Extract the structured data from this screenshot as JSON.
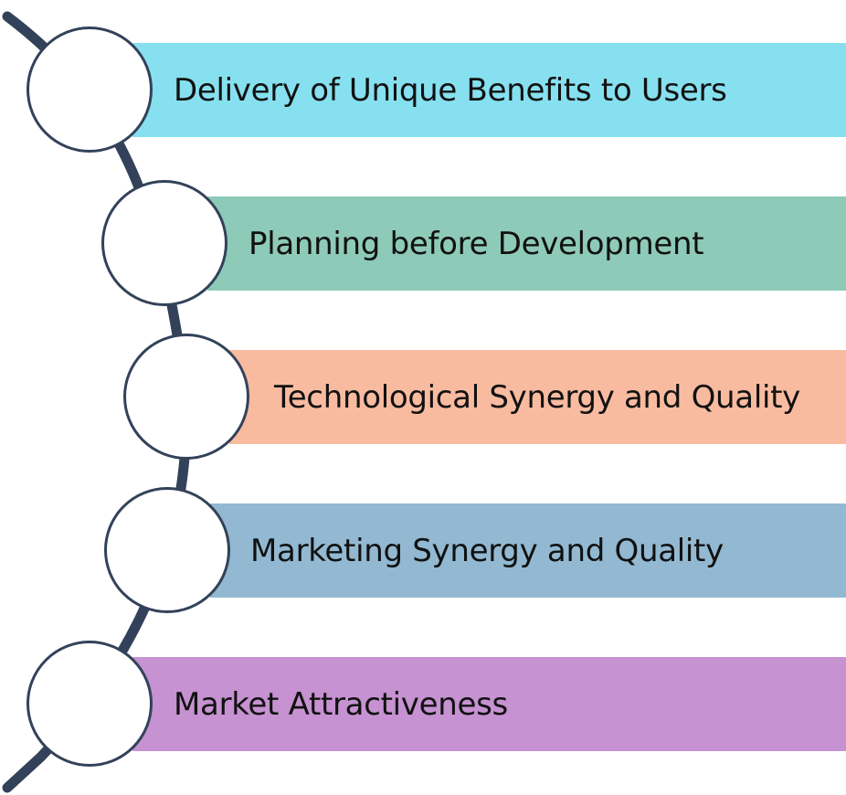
{
  "diagram": {
    "steps": [
      {
        "label": "Delivery of Unique Benefits to Users",
        "color": "#86e0ef"
      },
      {
        "label": "Planning before Development",
        "color": "#8ecab8"
      },
      {
        "label": "Technological Synergy and Quality",
        "color": "#f9bba0"
      },
      {
        "label": "Marketing Synergy and Quality",
        "color": "#92b9d1"
      },
      {
        "label": "Market Attractiveness",
        "color": "#c692d1"
      }
    ],
    "curve_color": "#33425a",
    "circle_border_color": "#33425a"
  }
}
